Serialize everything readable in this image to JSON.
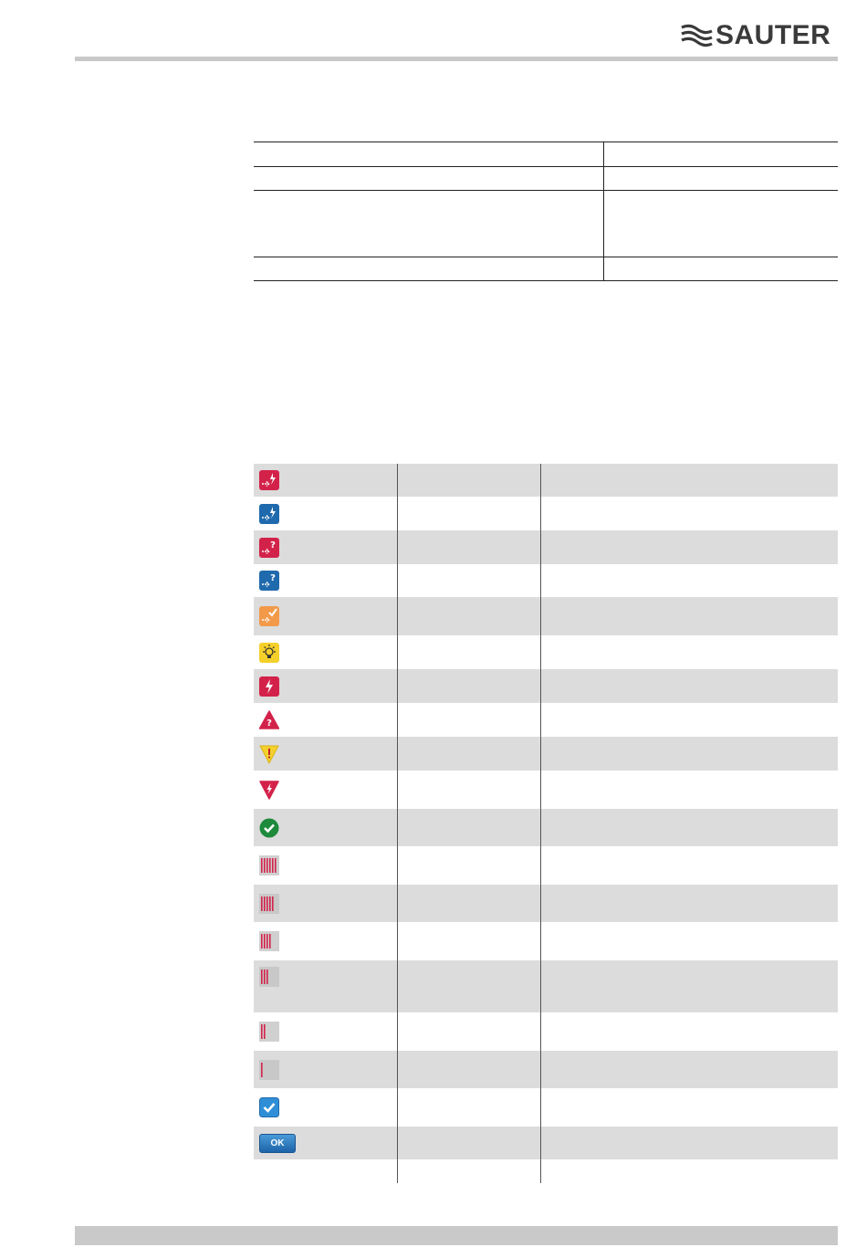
{
  "header": {
    "logo_text": "SAUTER"
  },
  "icons": {
    "rows": [
      {
        "name": "alarm-pending-red-icon",
        "color": "#d3224a"
      },
      {
        "name": "alarm-pending-blue-icon",
        "color": "#1f6aad"
      },
      {
        "name": "unknown-pending-red-icon",
        "color": "#d3224a"
      },
      {
        "name": "unknown-pending-blue-icon",
        "color": "#1f6aad"
      },
      {
        "name": "acknowledged-orange-icon",
        "color": "#f29a4a"
      },
      {
        "name": "lightbulb-yellow-icon",
        "color": "#f5d02a"
      },
      {
        "name": "alarm-red-icon",
        "color": "#d3224a"
      },
      {
        "name": "unknown-triangle-icon",
        "color": "#d3224a"
      },
      {
        "name": "warning-triangle-icon",
        "color": "#f5d02a"
      },
      {
        "name": "fault-triangle-icon",
        "color": "#d3224a"
      },
      {
        "name": "ok-check-green-icon",
        "color": "#1e8a3c"
      },
      {
        "name": "signal-6-bars-icon",
        "bars": 6
      },
      {
        "name": "signal-5-bars-icon",
        "bars": 5
      },
      {
        "name": "signal-4-bars-icon",
        "bars": 4
      },
      {
        "name": "signal-3-bars-icon",
        "bars": 3
      },
      {
        "name": "signal-2-bars-icon",
        "bars": 2
      },
      {
        "name": "signal-1-bar-icon",
        "bars": 1
      },
      {
        "name": "checkbox-checked-icon",
        "color": "#2f8fd6"
      },
      {
        "name": "ok-button",
        "label": "OK"
      }
    ]
  }
}
